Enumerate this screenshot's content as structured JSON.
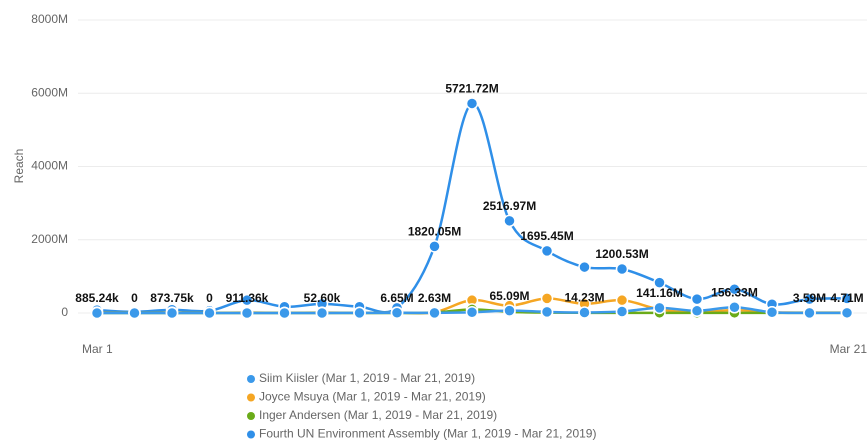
{
  "chart_data": {
    "type": "line",
    "y_label": "Reach",
    "categories": [
      "Mar 1",
      null,
      null,
      null,
      null,
      null,
      null,
      null,
      null,
      null,
      null,
      null,
      null,
      null,
      null,
      null,
      null,
      null,
      null,
      null,
      "Mar 21"
    ],
    "ylim": [
      0,
      8000
    ],
    "yticks": [
      0,
      {
        "value": 2000,
        "label": "2000M"
      },
      {
        "value": 4000,
        "label": "4000M"
      },
      {
        "value": 6000,
        "label": "6000M"
      },
      {
        "value": 8000,
        "label": "8000M"
      }
    ],
    "grid": true,
    "series": [
      {
        "name": "Siim Kiisler (Mar 1, 2019 - Mar 21, 2019)",
        "color": "#3b99ea",
        "values": [
          0.88524,
          0,
          0.87375,
          0,
          0.91136,
          1,
          0.0526,
          2,
          6.65,
          2.63,
          20,
          65.09,
          30,
          14.23,
          40,
          141.16,
          60,
          156.33,
          20,
          3.59,
          4.71
        ],
        "value_labels": [
          "885.24k",
          "0",
          "873.75k",
          "0",
          "911.36k",
          null,
          "52.60k",
          null,
          "6.65M",
          "2.63M",
          null,
          "65.09M",
          null,
          "14.23M",
          null,
          "141.16M",
          null,
          "156.33M",
          null,
          "3.59M",
          "4.71M"
        ]
      },
      {
        "name": "Joyce Msuya (Mar 1, 2019 - Mar 21, 2019)",
        "color": "#f5a623",
        "values": [
          10,
          5,
          10,
          5,
          10,
          5,
          10,
          5,
          10,
          20,
          350,
          200,
          400,
          250,
          350,
          100,
          20,
          80,
          20,
          10,
          10
        ]
      },
      {
        "name": "Inger Andersen (Mar 1, 2019 - Mar 21, 2019)",
        "color": "#6aab19",
        "values": [
          0,
          0,
          0,
          0,
          0,
          0,
          0,
          0,
          0,
          10,
          100,
          30,
          10,
          5,
          5,
          5,
          5,
          5,
          5,
          5,
          5
        ]
      },
      {
        "name": "Fourth UN Environment Assembly (Mar 1, 2019 - Mar 21, 2019)",
        "color": "#2f8fe8",
        "values": [
          80,
          30,
          90,
          60,
          350,
          170,
          250,
          170,
          140,
          1820.05,
          5721.72,
          2516.97,
          1695.45,
          1254,
          1200.53,
          830,
          380,
          650,
          240,
          380,
          400
        ],
        "value_labels": [
          null,
          null,
          null,
          null,
          null,
          null,
          null,
          null,
          null,
          "1820.05M",
          "5721.72M",
          "2516.97M",
          "1695.45M",
          null,
          "1200.53M",
          null,
          null,
          null,
          null,
          null,
          null
        ]
      }
    ]
  }
}
